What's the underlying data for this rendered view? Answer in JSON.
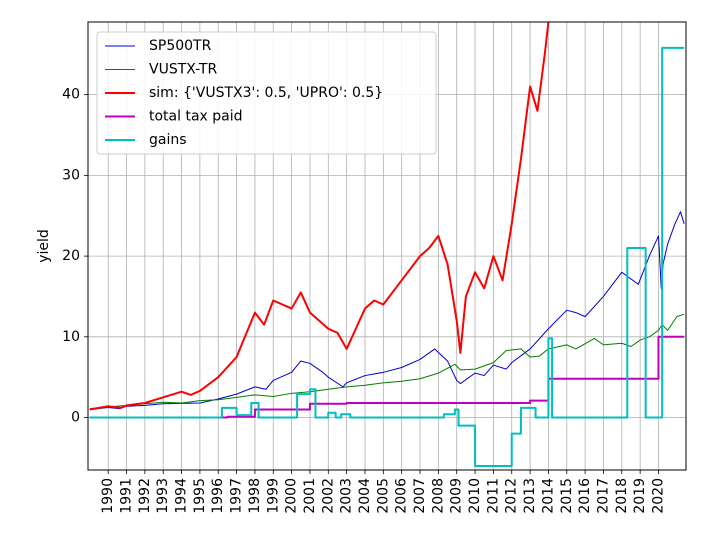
{
  "chart_data": {
    "type": "line",
    "title": "",
    "xlabel": "",
    "ylabel": "yield",
    "xlim": [
      1988.9,
      2021.5
    ],
    "ylim": [
      -6.5,
      49
    ],
    "grid": true,
    "legend_position": "top-left",
    "x_ticks": [
      "1990",
      "1991",
      "1992",
      "1993",
      "1994",
      "1995",
      "1996",
      "1997",
      "1998",
      "1999",
      "2000",
      "2001",
      "2002",
      "2003",
      "2004",
      "2005",
      "2006",
      "2007",
      "2008",
      "2009",
      "2010",
      "2011",
      "2012",
      "2013",
      "2014",
      "2015",
      "2016",
      "2017",
      "2018",
      "2019",
      "2020"
    ],
    "y_ticks": [
      "0",
      "10",
      "20",
      "30",
      "40"
    ],
    "series": [
      {
        "name": "SP500TR",
        "color": "#0000cc",
        "width": 1,
        "x": [
          1989.0,
          1990.0,
          1990.6,
          1991.0,
          1992.0,
          1993.0,
          1994.0,
          1995.0,
          1996.0,
          1997.0,
          1998.0,
          1998.6,
          1999.0,
          2000.0,
          2000.5,
          2001.0,
          2001.7,
          2002.0,
          2002.8,
          2003.0,
          2004.0,
          2005.0,
          2006.0,
          2007.0,
          2007.8,
          2008.5,
          2009.0,
          2009.2,
          2010.0,
          2010.5,
          2011.0,
          2011.7,
          2012.0,
          2013.0,
          2014.0,
          2015.0,
          2015.5,
          2016.0,
          2017.0,
          2018.0,
          2018.9,
          2019.5,
          2020.0,
          2020.15,
          2020.25,
          2020.5,
          2020.9,
          2021.2,
          2021.4
        ],
        "y": [
          1.0,
          1.25,
          1.1,
          1.4,
          1.5,
          1.7,
          1.75,
          1.8,
          2.3,
          2.9,
          3.8,
          3.5,
          4.6,
          5.6,
          7.0,
          6.7,
          5.6,
          5.0,
          3.8,
          4.3,
          5.2,
          5.6,
          6.2,
          7.2,
          8.5,
          7.0,
          4.6,
          4.2,
          5.5,
          5.2,
          6.5,
          6.0,
          6.8,
          8.5,
          11.0,
          13.3,
          13.0,
          12.5,
          15.0,
          18.0,
          16.5,
          20.0,
          22.5,
          16.0,
          19.0,
          21.5,
          24.0,
          25.5,
          24.0
        ]
      },
      {
        "name": "VUSTX-TR",
        "color": "#007f00",
        "width": 1,
        "x": [
          1989.0,
          1990.0,
          1991.0,
          1992.0,
          1993.0,
          1994.0,
          1995.0,
          1996.0,
          1997.0,
          1998.0,
          1999.0,
          2000.0,
          2001.0,
          2002.0,
          2003.0,
          2004.0,
          2005.0,
          2006.0,
          2007.0,
          2008.0,
          2008.9,
          2009.2,
          2010.0,
          2011.0,
          2011.7,
          2012.5,
          2013.0,
          2013.5,
          2014.0,
          2015.0,
          2015.5,
          2016.5,
          2017.0,
          2018.0,
          2018.5,
          2019.0,
          2019.5,
          2020.0,
          2020.2,
          2020.5,
          2021.0,
          2021.4
        ],
        "y": [
          1.1,
          1.3,
          1.5,
          1.7,
          1.9,
          1.8,
          2.1,
          2.2,
          2.5,
          2.8,
          2.6,
          3.0,
          3.2,
          3.5,
          3.8,
          4.0,
          4.3,
          4.5,
          4.8,
          5.5,
          6.6,
          5.9,
          6.0,
          6.8,
          8.3,
          8.5,
          7.5,
          7.6,
          8.5,
          9.0,
          8.5,
          9.8,
          9.0,
          9.2,
          8.8,
          9.6,
          10.0,
          10.8,
          11.5,
          10.8,
          12.5,
          12.8
        ]
      },
      {
        "name": "sim: {'VUSTX3': 0.5, 'UPRO': 0.5}",
        "color": "#ff0000",
        "width": 2,
        "x": [
          1989.0,
          1990.0,
          1990.7,
          1991.0,
          1992.0,
          1993.0,
          1994.0,
          1994.5,
          1995.0,
          1996.0,
          1997.0,
          1998.0,
          1998.5,
          1999.0,
          2000.0,
          2000.5,
          2001.0,
          2001.5,
          2002.0,
          2002.5,
          2003.0,
          2003.5,
          2004.0,
          2004.5,
          2005.0,
          2006.0,
          2007.0,
          2007.5,
          2008.0,
          2008.5,
          2009.0,
          2009.2,
          2009.5,
          2010.0,
          2010.5,
          2011.0,
          2011.5,
          2012.0,
          2012.5,
          2013.0,
          2013.4,
          2013.8,
          2014.0
        ],
        "y": [
          1.0,
          1.4,
          1.2,
          1.5,
          1.8,
          2.5,
          3.2,
          2.8,
          3.3,
          5.0,
          7.5,
          13.0,
          11.5,
          14.5,
          13.5,
          15.5,
          13.0,
          12.0,
          11.0,
          10.5,
          8.5,
          11.0,
          13.5,
          14.5,
          14.0,
          17.0,
          20.0,
          21.0,
          22.5,
          19.0,
          12.0,
          8.0,
          15.0,
          18.0,
          16.0,
          20.0,
          17.0,
          24.0,
          32.0,
          41.0,
          38.0,
          45.0,
          49.0
        ]
      },
      {
        "name": "total tax paid",
        "color": "#bf00bf",
        "width": 2,
        "step": true,
        "x": [
          1989.0,
          1996.5,
          1998.0,
          2001.0,
          2003.0,
          2013.0,
          2014.0,
          2019.0,
          2020.0,
          2021.4
        ],
        "y": [
          0.0,
          0.1,
          1.0,
          1.7,
          1.8,
          2.1,
          4.8,
          4.8,
          10.0,
          10.0
        ]
      },
      {
        "name": "gains",
        "color": "#00bfbf",
        "width": 2,
        "step": true,
        "x": [
          1989.0,
          1996.2,
          1997.0,
          1997.8,
          1998.2,
          2000.3,
          2001.0,
          2001.3,
          2002.0,
          2002.4,
          2002.7,
          2003.2,
          2008.3,
          2008.9,
          2009.1,
          2010.0,
          2012.0,
          2012.5,
          2013.3,
          2014.0,
          2014.2,
          2018.3,
          2019.3,
          2020.2,
          2020.6,
          2021.4
        ],
        "y": [
          0.0,
          1.2,
          0.3,
          1.8,
          0.0,
          2.9,
          3.5,
          0.0,
          0.6,
          0.0,
          0.4,
          0.0,
          0.4,
          1.0,
          -1.0,
          -6.0,
          -2.0,
          1.2,
          0.0,
          9.8,
          0.0,
          21.0,
          0.0,
          45.8,
          45.8,
          45.8
        ]
      }
    ]
  }
}
